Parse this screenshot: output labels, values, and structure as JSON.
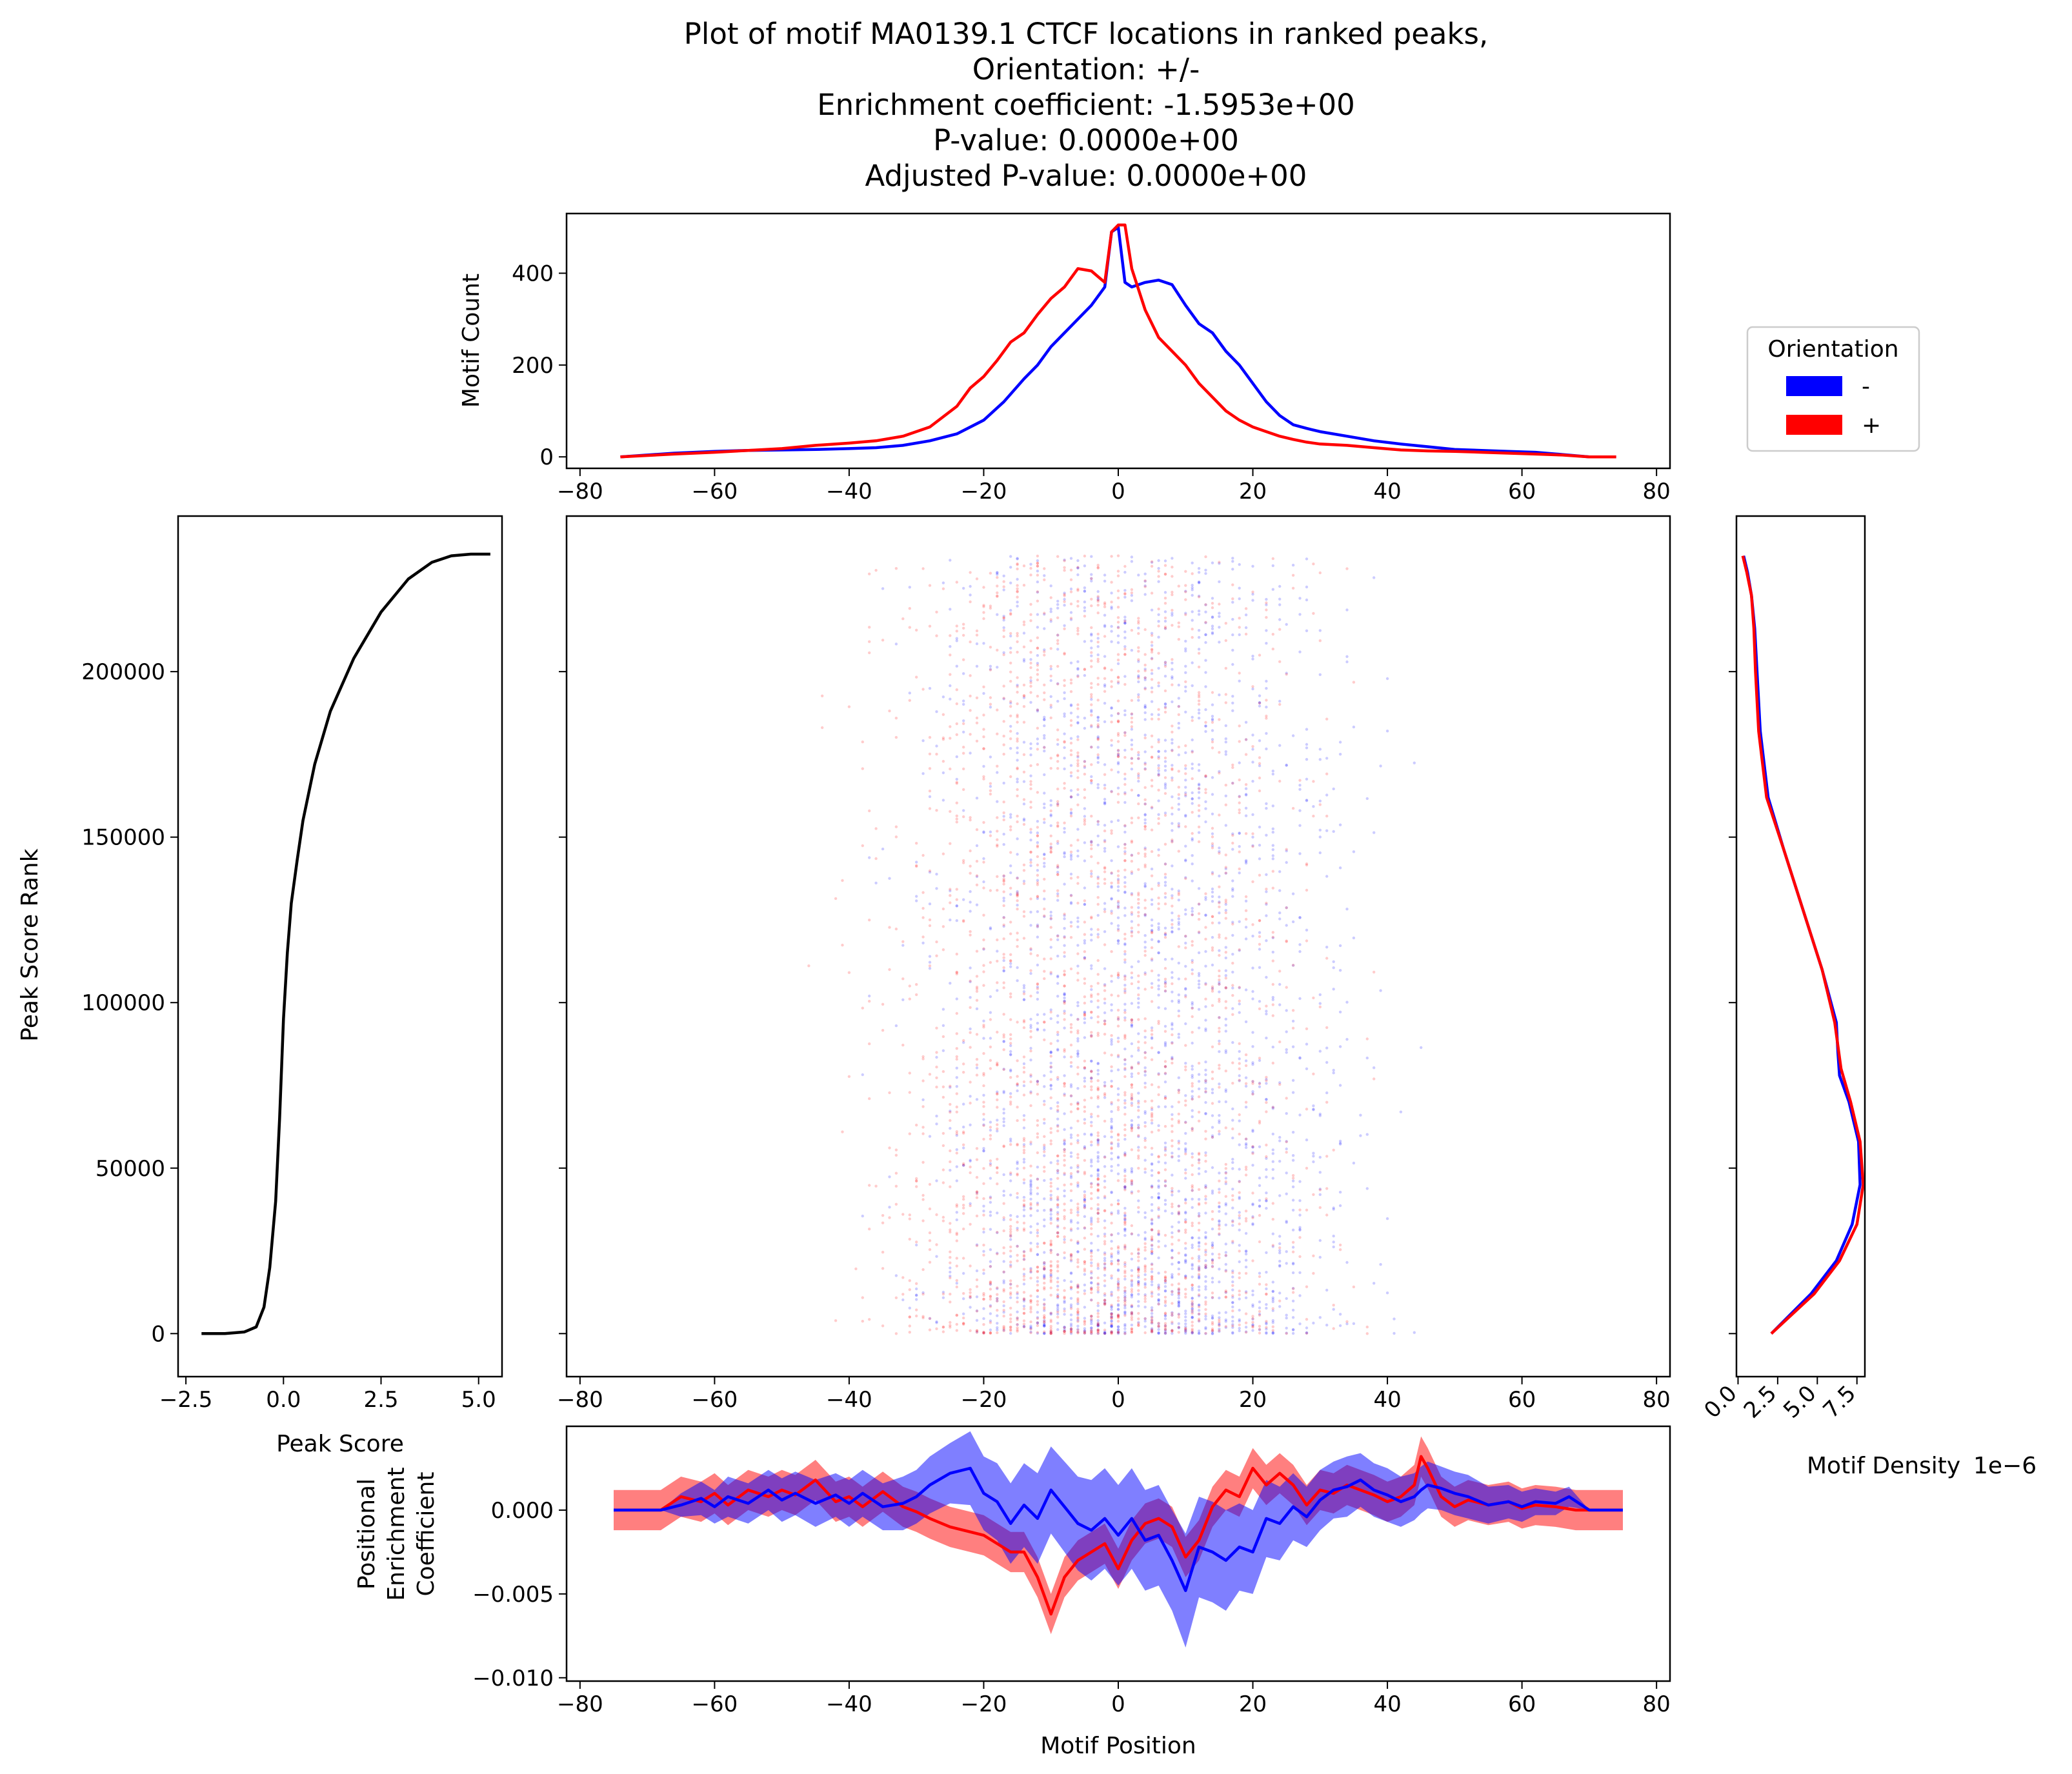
{
  "title_lines": [
    "Plot of motif MA0139.1 CTCF locations in ranked peaks,",
    "Orientation: +/-",
    "Enrichment coefficient: -1.5953e+00",
    "P-value: 0.0000e+00",
    "Adjusted P-value: 0.0000e+00"
  ],
  "colors": {
    "minus": "#0000ff",
    "plus": "#ff0000",
    "rank": "#000000"
  },
  "legend": {
    "title": "Orientation",
    "location": "top-right",
    "entries": [
      {
        "label": "-",
        "color": "#0000ff"
      },
      {
        "label": "+",
        "color": "#ff0000"
      }
    ]
  },
  "chart_data": [
    {
      "id": "motif-count",
      "type": "line",
      "title": "",
      "xlabel": "",
      "ylabel": "Motif Count",
      "xlim": [
        -82,
        82
      ],
      "ylim": [
        -25,
        530
      ],
      "xticks": [
        -80,
        -60,
        -40,
        -20,
        0,
        20,
        40,
        60,
        80
      ],
      "xticklabels": [
        "−80",
        "−60",
        "−40",
        "−20",
        "0",
        "20",
        "40",
        "60",
        "80"
      ],
      "yticks": [
        0,
        200,
        400
      ],
      "yticklabels": [
        "0",
        "200",
        "400"
      ],
      "grid": false,
      "series": [
        {
          "name": "-",
          "color": "#0000ff",
          "x": [
            -74,
            -66,
            -60,
            -55,
            -50,
            -45,
            -40,
            -36,
            -32,
            -28,
            -24,
            -20,
            -17,
            -14,
            -12,
            -10,
            -8,
            -6,
            -4,
            -2,
            -1,
            0,
            1,
            2,
            4,
            6,
            8,
            10,
            12,
            14,
            16,
            18,
            20,
            22,
            24,
            26,
            28,
            30,
            34,
            38,
            42,
            46,
            50,
            54,
            58,
            62,
            66,
            70,
            74
          ],
          "y": [
            0,
            8,
            12,
            14,
            15,
            16,
            18,
            20,
            25,
            35,
            50,
            80,
            120,
            170,
            200,
            240,
            270,
            300,
            330,
            370,
            490,
            500,
            380,
            370,
            380,
            385,
            375,
            330,
            290,
            270,
            230,
            200,
            160,
            120,
            90,
            70,
            62,
            55,
            45,
            35,
            28,
            22,
            16,
            14,
            12,
            10,
            5,
            0,
            0
          ]
        },
        {
          "name": "+",
          "color": "#ff0000",
          "x": [
            -74,
            -66,
            -60,
            -55,
            -50,
            -45,
            -40,
            -36,
            -32,
            -28,
            -24,
            -22,
            -20,
            -18,
            -16,
            -14,
            -12,
            -10,
            -8,
            -6,
            -4,
            -2,
            -1,
            0,
            1,
            2,
            4,
            6,
            8,
            10,
            12,
            14,
            16,
            18,
            20,
            22,
            24,
            26,
            28,
            30,
            34,
            38,
            42,
            46,
            50,
            54,
            58,
            62,
            66,
            70,
            74
          ],
          "y": [
            0,
            6,
            10,
            14,
            18,
            25,
            30,
            35,
            45,
            65,
            110,
            150,
            175,
            210,
            250,
            270,
            310,
            345,
            370,
            410,
            405,
            380,
            490,
            505,
            505,
            410,
            320,
            260,
            230,
            200,
            160,
            130,
            100,
            80,
            65,
            55,
            45,
            38,
            32,
            28,
            25,
            20,
            15,
            13,
            12,
            10,
            8,
            6,
            4,
            0,
            0
          ]
        }
      ]
    },
    {
      "id": "peak-score-rank",
      "type": "line",
      "title": "",
      "xlabel": "Peak Score",
      "ylabel": "Peak Score Rank",
      "xlim": [
        -2.7,
        5.6
      ],
      "ylim": [
        -13000,
        247000
      ],
      "xticks": [
        -2.5,
        0.0,
        2.5,
        5.0
      ],
      "xticklabels": [
        "−2.5",
        "0.0",
        "2.5",
        "5.0"
      ],
      "yticks": [
        0,
        50000,
        100000,
        150000,
        200000
      ],
      "yticklabels": [
        "0",
        "50000",
        "100000",
        "150000",
        "200000"
      ],
      "grid": false,
      "series": [
        {
          "name": "",
          "color": "#000000",
          "x": [
            -2.1,
            -1.5,
            -1.0,
            -0.7,
            -0.5,
            -0.35,
            -0.2,
            -0.1,
            0.0,
            0.1,
            0.2,
            0.35,
            0.5,
            0.8,
            1.2,
            1.8,
            2.5,
            3.2,
            3.8,
            4.3,
            4.8,
            5.3
          ],
          "y": [
            0,
            0,
            500,
            2000,
            8000,
            20000,
            40000,
            65000,
            95000,
            115000,
            130000,
            143000,
            155000,
            172000,
            188000,
            204000,
            218000,
            228000,
            233000,
            235000,
            235500,
            235500
          ]
        }
      ]
    },
    {
      "id": "motif-scatter",
      "type": "scatter",
      "title": "",
      "xlabel": "",
      "ylabel": "",
      "xlim": [
        -82,
        82
      ],
      "ylim": [
        -13000,
        247000
      ],
      "xticks": [
        -80,
        -60,
        -40,
        -20,
        0,
        20,
        40,
        60,
        80
      ],
      "xticklabels": [
        "−80",
        "−60",
        "−40",
        "−20",
        "0",
        "20",
        "40",
        "60",
        "80"
      ],
      "yticks": [
        0,
        50000,
        100000,
        150000,
        200000
      ],
      "yticklabels": [],
      "grid": false,
      "point_alpha": 0.05,
      "series": [
        {
          "name": "-",
          "color": "#0000ff",
          "x_range": [
            -66,
            66
          ],
          "y_range": [
            0,
            235000
          ]
        },
        {
          "name": "+",
          "color": "#ff0000",
          "x_range": [
            -66,
            66
          ],
          "y_range": [
            0,
            235000
          ]
        }
      ]
    },
    {
      "id": "motif-density",
      "type": "line",
      "title": "",
      "xlabel": "Motif Density",
      "ylabel": "",
      "x_offset_label": "1e−6",
      "xlim": [
        -0.1,
        8.0
      ],
      "ylim": [
        -13000,
        247000
      ],
      "xticks": [
        0.0,
        2.5,
        5.0,
        7.5
      ],
      "xticklabels": [
        "0.0",
        "2.5",
        "5.0",
        "7.5"
      ],
      "yticks": [
        0,
        50000,
        100000,
        150000,
        200000
      ],
      "yticklabels": [],
      "grid": false,
      "series": [
        {
          "name": "-",
          "color": "#0000ff",
          "x": [
            2.1,
            4.6,
            6.2,
            7.2,
            7.7,
            7.6,
            7.0,
            6.4,
            6.3,
            6.2,
            5.3,
            4.1,
            2.9,
            1.9,
            1.4,
            1.2,
            1.05,
            0.85,
            0.6,
            0.35
          ],
          "y": [
            0,
            12000,
            22000,
            33000,
            45000,
            58000,
            70000,
            78000,
            85000,
            94000,
            110000,
            128000,
            146000,
            162000,
            182000,
            200000,
            213000,
            223000,
            230000,
            235000
          ]
        },
        {
          "name": "+",
          "color": "#ff0000",
          "x": [
            2.1,
            4.8,
            6.4,
            7.5,
            7.9,
            7.7,
            7.1,
            6.5,
            6.1,
            5.3,
            4.1,
            2.9,
            1.8,
            1.3,
            1.1,
            1.0,
            0.85,
            0.55,
            0.3
          ],
          "y": [
            0,
            12000,
            22000,
            33000,
            45000,
            58000,
            70000,
            80000,
            94000,
            110000,
            128000,
            146000,
            162000,
            182000,
            200000,
            213000,
            223000,
            230000,
            235000
          ]
        }
      ]
    },
    {
      "id": "positional-enrichment",
      "type": "line",
      "title": "",
      "xlabel": "Motif Position",
      "ylabel": "Positional Enrichment Coefficient",
      "ylabel_lines": [
        "Positional",
        "Enrichment",
        "Coefficient"
      ],
      "xlim": [
        -82,
        82
      ],
      "ylim": [
        -0.0102,
        0.005
      ],
      "xticks": [
        -80,
        -60,
        -40,
        -20,
        0,
        20,
        40,
        60,
        80
      ],
      "xticklabels": [
        "−80",
        "−60",
        "−40",
        "−20",
        "0",
        "20",
        "40",
        "60",
        "80"
      ],
      "yticks": [
        -0.01,
        -0.005,
        0.0
      ],
      "yticklabels": [
        "−0.010",
        "−0.005",
        "0.000"
      ],
      "grid": false,
      "series": [
        {
          "name": "+",
          "color": "#ff0000",
          "band_halfwidth": 0.0012,
          "x": [
            -75,
            -68,
            -65,
            -62,
            -60,
            -58,
            -55,
            -52,
            -50,
            -48,
            -45,
            -42,
            -40,
            -38,
            -35,
            -32,
            -30,
            -28,
            -25,
            -22,
            -20,
            -18,
            -16,
            -14,
            -12,
            -10,
            -8,
            -6,
            -4,
            -2,
            0,
            2,
            4,
            6,
            8,
            10,
            12,
            14,
            16,
            18,
            20,
            22,
            24,
            26,
            28,
            30,
            32,
            34,
            36,
            38,
            40,
            42,
            44,
            45,
            46,
            48,
            50,
            52,
            55,
            58,
            60,
            62,
            65,
            68,
            70,
            75
          ],
          "y": [
            0,
            0,
            0.0008,
            0.0005,
            0.001,
            0.0003,
            0.0012,
            0.0008,
            0.0012,
            0.0009,
            0.0018,
            0.0005,
            0.0008,
            0.0002,
            0.0011,
            0.0002,
            -0.0001,
            -0.0005,
            -0.001,
            -0.0013,
            -0.0015,
            -0.002,
            -0.0025,
            -0.0025,
            -0.004,
            -0.0062,
            -0.004,
            -0.003,
            -0.0025,
            -0.002,
            -0.0035,
            -0.0018,
            -0.0008,
            -0.0005,
            -0.001,
            -0.0028,
            -0.0018,
            0.0002,
            0.0012,
            0.0008,
            0.0025,
            0.0015,
            0.0022,
            0.0015,
            0.0003,
            0.0012,
            0.001,
            0.0015,
            0.0012,
            0.0009,
            0.0005,
            0.0008,
            0.0015,
            0.0032,
            0.0025,
            0.0008,
            0.0002,
            0.0006,
            0.0003,
            0.0005,
            0.0001,
            0.0003,
            0.0002,
            0.0,
            0,
            0
          ]
        },
        {
          "name": "-",
          "color": "#0000ff",
          "x": [
            -75,
            -68,
            -65,
            -62,
            -60,
            -58,
            -55,
            -52,
            -50,
            -48,
            -45,
            -42,
            -40,
            -38,
            -35,
            -32,
            -30,
            -28,
            -25,
            -22,
            -20,
            -18,
            -16,
            -14,
            -12,
            -10,
            -8,
            -6,
            -4,
            -2,
            0,
            2,
            4,
            6,
            8,
            10,
            12,
            14,
            16,
            18,
            20,
            22,
            24,
            26,
            28,
            30,
            32,
            34,
            36,
            38,
            40,
            42,
            44,
            45,
            46,
            48,
            50,
            52,
            55,
            58,
            60,
            62,
            65,
            67,
            70,
            75
          ],
          "y": [
            0,
            0,
            0.0003,
            0.0007,
            0.0002,
            0.0008,
            0.0004,
            0.0012,
            0.0006,
            0.001,
            0.0004,
            0.0009,
            0.0004,
            0.001,
            0.0002,
            0.0004,
            0.0008,
            0.0015,
            0.0022,
            0.0025,
            0.001,
            0.0005,
            -0.0008,
            0.0003,
            -0.0005,
            0.0012,
            0.0002,
            -0.0008,
            -0.0012,
            -0.0005,
            -0.0015,
            -0.0005,
            -0.0018,
            -0.0015,
            -0.003,
            -0.0048,
            -0.0022,
            -0.0025,
            -0.003,
            -0.0022,
            -0.0025,
            -0.0005,
            -0.0008,
            0.0002,
            -0.0004,
            0.0006,
            0.0012,
            0.0014,
            0.0018,
            0.0012,
            0.0009,
            0.0005,
            0.0008,
            0.0012,
            0.0015,
            0.0013,
            0.001,
            0.0008,
            0.0003,
            0.0005,
            0.0002,
            0.0005,
            0.0004,
            0.0008,
            0,
            0
          ]
        }
      ],
      "bands": [
        {
          "name": "-",
          "color": "#0000ff",
          "alpha": 0.5,
          "x": [
            -75,
            -68,
            -65,
            -62,
            -60,
            -58,
            -55,
            -52,
            -50,
            -48,
            -45,
            -42,
            -40,
            -38,
            -35,
            -32,
            -30,
            -28,
            -25,
            -22,
            -20,
            -18,
            -16,
            -14,
            -12,
            -10,
            -8,
            -6,
            -4,
            -2,
            0,
            2,
            4,
            6,
            8,
            10,
            12,
            14,
            16,
            18,
            20,
            22,
            24,
            26,
            28,
            30,
            32,
            34,
            36,
            38,
            40,
            42,
            44,
            45,
            46,
            48,
            50,
            52,
            55,
            58,
            60,
            62,
            65,
            67,
            70,
            75
          ],
          "lo": [
            0,
            0,
            -0.0004,
            -0.0003,
            -0.0008,
            -0.0004,
            -0.0008,
            0.0,
            -0.0007,
            -0.0003,
            -0.001,
            -0.0004,
            -0.001,
            -0.0004,
            -0.0012,
            -0.0012,
            -0.0008,
            -0.0002,
            0.0004,
            0.0003,
            -0.0012,
            -0.0018,
            -0.0032,
            -0.0022,
            -0.0032,
            -0.0014,
            -0.0025,
            -0.0036,
            -0.0042,
            -0.0035,
            -0.0045,
            -0.0035,
            -0.0048,
            -0.0045,
            -0.006,
            -0.0082,
            -0.0052,
            -0.0055,
            -0.006,
            -0.0048,
            -0.005,
            -0.0028,
            -0.003,
            -0.0018,
            -0.0022,
            -0.0012,
            -0.0005,
            -0.0004,
            0.0002,
            -0.0004,
            -0.0007,
            -0.001,
            -0.0006,
            -0.0002,
            0.0001,
            0.0,
            -0.0003,
            -0.0005,
            -0.0008,
            -0.0005,
            -0.0007,
            -0.0003,
            -0.0003,
            0.0002,
            0,
            0
          ],
          "hi": [
            0,
            0,
            0.001,
            0.0017,
            0.0012,
            0.002,
            0.0016,
            0.0024,
            0.0019,
            0.0023,
            0.0018,
            0.0022,
            0.0018,
            0.0024,
            0.0016,
            0.002,
            0.0024,
            0.0032,
            0.004,
            0.0047,
            0.0032,
            0.0028,
            0.0016,
            0.0028,
            0.0022,
            0.0038,
            0.0029,
            0.002,
            0.0018,
            0.0025,
            0.0015,
            0.0025,
            0.0012,
            0.0015,
            0.0,
            -0.0014,
            0.0008,
            0.0005,
            0.0,
            0.0004,
            0.0,
            0.0018,
            0.0014,
            0.0022,
            0.0014,
            0.0024,
            0.0029,
            0.0032,
            0.0034,
            0.0028,
            0.0025,
            0.002,
            0.0022,
            0.0026,
            0.0029,
            0.0026,
            0.0023,
            0.0021,
            0.0014,
            0.0015,
            0.0011,
            0.0013,
            0.0011,
            0.0014,
            0,
            0
          ]
        }
      ]
    }
  ]
}
